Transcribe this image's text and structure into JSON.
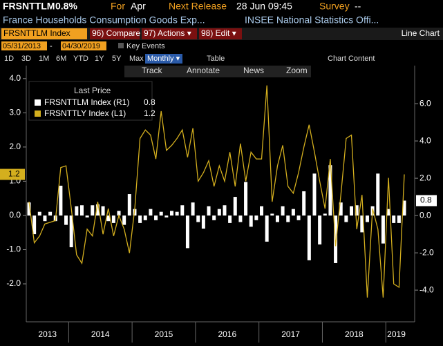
{
  "header": {
    "ticker": "FRSNTTLM",
    "value": "0.8%",
    "period_label": "For",
    "period": "Apr",
    "release_label": "Next Release",
    "release": "28 Jun 09:45",
    "survey_label": "Survey",
    "survey": "--",
    "description": "France Households Consumption Goods Exp...",
    "source": "INSEE National Statistics Offi..."
  },
  "toolbar": {
    "security": "FRSNTTLM Index",
    "compare": "96) Compare",
    "actions": "97) Actions ▾",
    "edit": "98) Edit ▾",
    "view": "Line Chart",
    "start_date": "05/31/2013",
    "date_sep": "-",
    "end_date": "04/30/2019",
    "key_events": "Key Events",
    "ranges": [
      "1D",
      "3D",
      "1M",
      "6M",
      "YTD",
      "1Y",
      "5Y",
      "Max"
    ],
    "frequency": "Monthly ▾",
    "table": "Table",
    "chart_content": "Chart Content",
    "tools": [
      "Track",
      "Annotate",
      "News",
      "Zoom"
    ]
  },
  "chart_data": {
    "type": "bar",
    "legend_title": "Last Price",
    "year_labels": [
      2013,
      2014,
      2015,
      2016,
      2017,
      2018,
      2019
    ],
    "categories": [
      null,
      null,
      null,
      null,
      null,
      null,
      null,
      null,
      null,
      null,
      null,
      null,
      null,
      null,
      null,
      null,
      null,
      null,
      null,
      null,
      null,
      null,
      null,
      null,
      null,
      null,
      null,
      null,
      null,
      null,
      null,
      null,
      null,
      null,
      null,
      null,
      null,
      null,
      null,
      null,
      null,
      null,
      null,
      null,
      null,
      null,
      null,
      null,
      null,
      null,
      null,
      null,
      null,
      null,
      null,
      null,
      null,
      null,
      null,
      null,
      null,
      null,
      null,
      null,
      null,
      null,
      null,
      null,
      null,
      null,
      null,
      null
    ],
    "series": [
      {
        "name": "FRSNTTLM Index (R1)",
        "type": "bar",
        "axis": "y2",
        "color": "#ffffff",
        "values": [
          0.7,
          -1.0,
          0.2,
          -0.3,
          0.2,
          -0.3,
          1.6,
          -0.5,
          -1.7,
          0.5,
          0.55,
          -0.1,
          0.55,
          0.6,
          0.5,
          -0.3,
          -0.4,
          0.25,
          -0.5,
          1.15,
          0.35,
          -0.4,
          -0.25,
          0.35,
          -0.25,
          0.2,
          -0.1,
          0.25,
          0.2,
          0.55,
          -1.75,
          0.7,
          -0.35,
          -0.7,
          0.5,
          -0.25,
          0.35,
          0.55,
          -0.4,
          1.0,
          -0.35,
          1.8,
          -0.6,
          -0.25,
          0.5,
          -1.4,
          0.1,
          -0.35,
          0.5,
          -0.35,
          0.35,
          -0.25,
          1.3,
          -2.4,
          2.25,
          -1.55,
          0.1,
          2.7,
          -2.55,
          0.7,
          -0.35,
          0.5,
          0.55,
          -0.9,
          -0.35,
          0.5,
          2.25,
          -1.5,
          0.35,
          -0.4,
          -0.4,
          0.8
        ]
      },
      {
        "name": "FRSNTTLY Index (L1)",
        "type": "line",
        "axis": "y",
        "color": "#d4af1e",
        "values": [
          0.4,
          -0.8,
          -0.6,
          -0.25,
          -0.2,
          -0.15,
          1.4,
          1.45,
          0.2,
          -1.15,
          -1.4,
          -0.4,
          -0.6,
          0.4,
          -0.55,
          0.2,
          -0.6,
          0.0,
          -0.4,
          -1.1,
          0.2,
          2.25,
          2.5,
          2.35,
          1.65,
          3.05,
          1.9,
          2.05,
          2.25,
          2.5,
          1.7,
          2.55,
          1.0,
          1.25,
          1.6,
          0.85,
          1.45,
          1.0,
          1.85,
          0.85,
          2.1,
          1.0,
          1.85,
          1.65,
          1.65,
          3.8,
          0.4,
          1.45,
          2.05,
          0.85,
          0.65,
          1.25,
          2.0,
          2.65,
          1.85,
          1.0,
          0.2,
          1.65,
          -0.9,
          0.6,
          2.25,
          2.35,
          -0.4,
          0.6,
          -2.4,
          0.2,
          -0.4,
          -2.4,
          1.1,
          -2.0,
          -2.1,
          1.2
        ]
      }
    ],
    "ylim": [
      -3.11,
      4.38
    ],
    "yticks": [
      {
        "value": -2,
        "label": "-2.0"
      },
      {
        "value": -1,
        "label": "-1.0"
      },
      {
        "value": 0,
        "label": "0.0"
      },
      {
        "value": 1,
        "label": "1.0"
      },
      {
        "value": 2,
        "label": "2.0"
      },
      {
        "value": 3,
        "label": "3.0"
      },
      {
        "value": 4,
        "label": "4.0"
      }
    ],
    "y2lim": [
      -5.7,
      8.04
    ],
    "y2ticks": [
      {
        "value": -4,
        "label": "-4.0"
      },
      {
        "value": -2,
        "label": "-2.0"
      },
      {
        "value": 0,
        "label": "0.0"
      },
      {
        "value": 2,
        "label": "2.0"
      },
      {
        "value": 4,
        "label": "4.0"
      },
      {
        "value": 6,
        "label": "6.0"
      }
    ]
  }
}
